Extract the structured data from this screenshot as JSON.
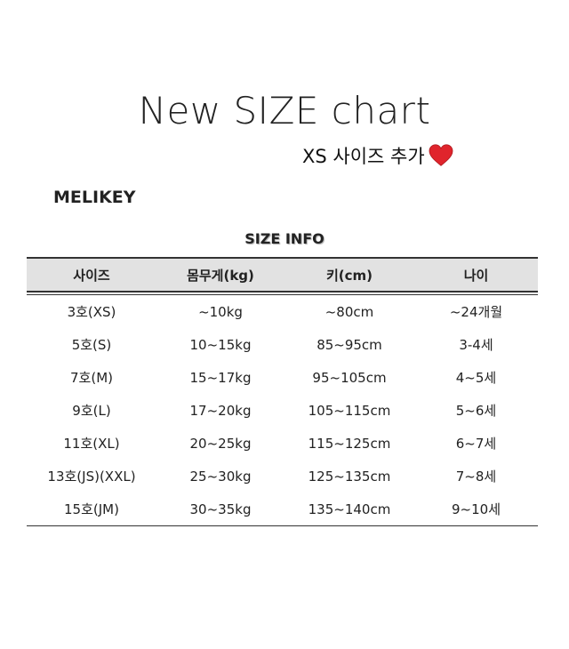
{
  "title": "New SIZE chart",
  "subtitle": "XS 사이즈 추가",
  "subtitle_icon": "red-heart-icon",
  "brand": "MELIKEY",
  "section_title": "SIZE INFO",
  "colors": {
    "header_bg": "#e2e2e2",
    "heart": "#e0242c"
  },
  "table": {
    "headers": [
      "사이즈",
      "몸무게(kg)",
      "키(cm)",
      "나이"
    ],
    "rows": [
      [
        "3호(XS)",
        "~10kg",
        "~80cm",
        "~24개월"
      ],
      [
        "5호(S)",
        "10~15kg",
        "85~95cm",
        "3-4세"
      ],
      [
        "7호(M)",
        "15~17kg",
        "95~105cm",
        "4~5세"
      ],
      [
        "9호(L)",
        "17~20kg",
        "105~115cm",
        "5~6세"
      ],
      [
        "11호(XL)",
        "20~25kg",
        "115~125cm",
        "6~7세"
      ],
      [
        "13호(JS)(XXL)",
        "25~30kg",
        "125~135cm",
        "7~8세"
      ],
      [
        "15호(JM)",
        "30~35kg",
        "135~140cm",
        "9~10세"
      ]
    ]
  }
}
